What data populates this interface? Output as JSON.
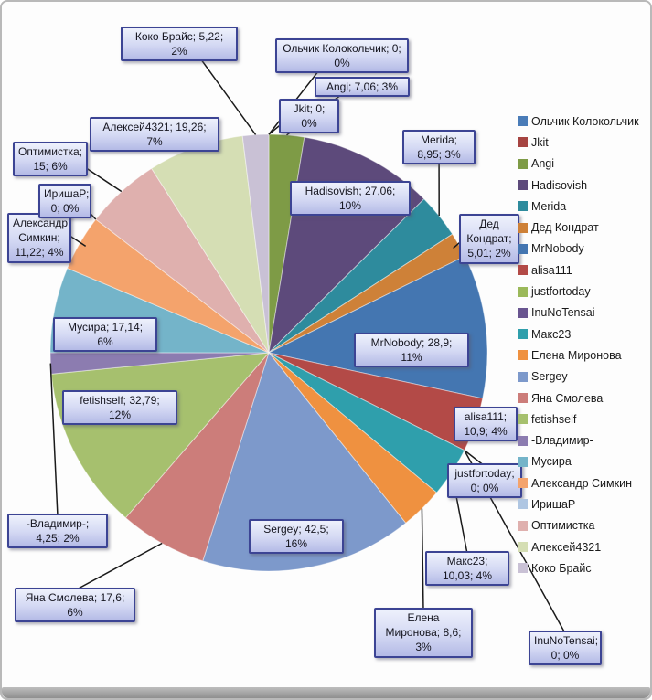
{
  "window": {
    "background": "#FDFDFD",
    "frame_color": "#B9B9B9",
    "bottom_bar_color": "#9C9C9C"
  },
  "styles": {
    "callout_border": "#3C4494",
    "callout_fill_top": "#EEF1FC",
    "callout_fill_bottom": "#B4BAE6",
    "leader_line": "#1A1A1A",
    "label_text": "#15151F",
    "legend_text": "#1A1A1A"
  },
  "chart_data": {
    "type": "pie",
    "title": "",
    "legend_position": "right",
    "label_format": "name; value; percent",
    "start_angle_deg": 0,
    "direction": "clockwise",
    "slices": [
      {
        "name": "Ольчик Колокольчик",
        "value": 0,
        "percent": "0%",
        "label": "Ольчик Колокольчик; 0; 0%",
        "color": "#4A7CB8"
      },
      {
        "name": "Jkit",
        "value": 0,
        "percent": "0%",
        "label": "Jkit; 0; 0%",
        "color": "#A64441"
      },
      {
        "name": "Angi",
        "value": 7.06,
        "percent": "3%",
        "label": "Angi; 7,06; 3%",
        "color": "#7E9B46"
      },
      {
        "name": "Hadisovish",
        "value": 27.06,
        "percent": "10%",
        "label": "Hadisovish; 27,06; 10%",
        "color": "#5D4A7B"
      },
      {
        "name": "Merida",
        "value": 8.95,
        "percent": "3%",
        "label": "Merida; 8,95; 3%",
        "color": "#2E8B9D"
      },
      {
        "name": "Дед Кондрат",
        "value": 5.01,
        "percent": "2%",
        "label": "Дед Кондрат; 5,01; 2%",
        "color": "#CE8138"
      },
      {
        "name": "MrNobody",
        "value": 28.9,
        "percent": "11%",
        "label": "MrNobody; 28,9; 11%",
        "color": "#4476B1"
      },
      {
        "name": "alisa111",
        "value": 10.9,
        "percent": "4%",
        "label": "alisa111; 10,9; 4%",
        "color": "#B34A47"
      },
      {
        "name": "justfortoday",
        "value": 0,
        "percent": "0%",
        "label": "justfortoday; 0; 0%",
        "color": "#9BB95A"
      },
      {
        "name": "InuNoTensai",
        "value": 0,
        "percent": "0%",
        "label": "InuNoTensai; 0; 0%",
        "color": "#695590"
      },
      {
        "name": "Макс23",
        "value": 10.03,
        "percent": "4%",
        "label": "Макс23; 10,03; 4%",
        "color": "#2F9FAC"
      },
      {
        "name": "Елена Миронова",
        "value": 8.6,
        "percent": "3%",
        "label": "Елена Миронова; 8,6; 3%",
        "color": "#EF9140"
      },
      {
        "name": "Sergey",
        "value": 42.5,
        "percent": "16%",
        "label": "Sergey; 42,5; 16%",
        "color": "#7D99CB"
      },
      {
        "name": "Яна Смолева",
        "value": 17.6,
        "percent": "6%",
        "label": "Яна Смолева; 17,6; 6%",
        "color": "#CC7D7A"
      },
      {
        "name": "fetishself",
        "value": 32.79,
        "percent": "12%",
        "label": "fetishself; 32,79; 12%",
        "color": "#A6C06E"
      },
      {
        "name": "-Владимир-",
        "value": 4.25,
        "percent": "2%",
        "label": "-Владимир-; 4,25; 2%",
        "color": "#8C7CB0"
      },
      {
        "name": "Мусира",
        "value": 17.14,
        "percent": "6%",
        "label": "Мусира; 17,14; 6%",
        "color": "#74B4C9"
      },
      {
        "name": "Александр Симкин",
        "value": 11.22,
        "percent": "4%",
        "label": "Александр Симкин; 11,22; 4%",
        "color": "#F4A36C"
      },
      {
        "name": "ИришаР",
        "value": 0,
        "percent": "0%",
        "label": "ИришаР; 0; 0%",
        "color": "#AFC6E2"
      },
      {
        "name": "Оптимистка",
        "value": 15,
        "percent": "6%",
        "label": "Оптимистка; 15; 6%",
        "color": "#DFB0AE"
      },
      {
        "name": "Алексей4321",
        "value": 19.26,
        "percent": "7%",
        "label": "Алексей4321; 19,26; 7%",
        "color": "#D5DEB4"
      },
      {
        "name": "Коко Брайс",
        "value": 5.22,
        "percent": "2%",
        "label": "Коко Брайс; 5,22; 2%",
        "color": "#C9C1D5"
      }
    ]
  }
}
